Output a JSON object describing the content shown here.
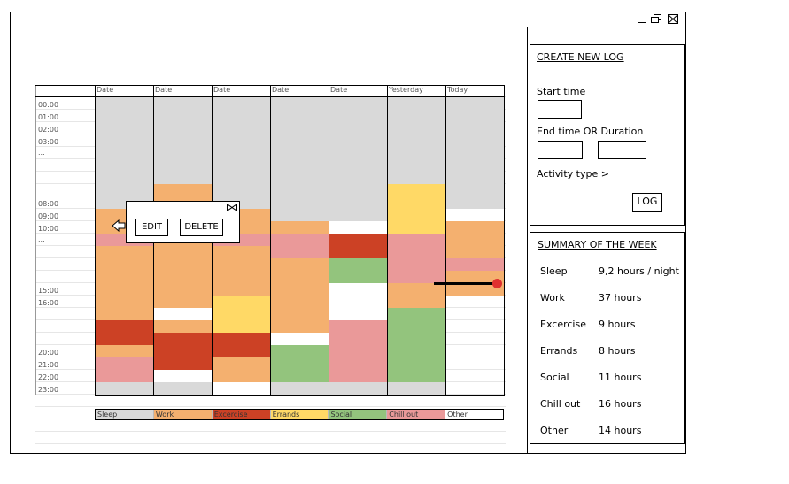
{
  "calendar": {
    "columns": [
      "Date",
      "Date",
      "Date",
      "Date",
      "Date",
      "Yesterday",
      "Today"
    ],
    "times": [
      "00:00",
      "01:00",
      "02:00",
      "03:00",
      "...",
      "08:00",
      "09:00",
      "10:00",
      "...",
      "15:00",
      "16:00",
      "20:00",
      "21:00",
      "22:00",
      "23:00"
    ]
  },
  "legend": [
    "Sleep",
    "Work",
    "Excercise",
    "Errands",
    "Social",
    "Chill out",
    "Other"
  ],
  "colors": {
    "sleep": "#d9d9d9",
    "work": "#f4b06f",
    "excercise": "#cc4125",
    "errands": "#ffd966",
    "social": "#93c47d",
    "chill_out": "#ea9999",
    "other": "#ffffff",
    "now_marker": "#e03030"
  },
  "popup": {
    "edit": "EDIT",
    "delete": "DELETE"
  },
  "create_log": {
    "title": "CREATE NEW LOG",
    "start_time": "Start time",
    "end_or_duration": "End time OR Duration",
    "activity_type": "Activity type >",
    "log_button": "LOG"
  },
  "summary": {
    "title": "SUMMARY OF THE WEEK",
    "rows": [
      {
        "activity": "Sleep",
        "value": "9,2 hours / night"
      },
      {
        "activity": "Work",
        "value": "37 hours"
      },
      {
        "activity": "Excercise",
        "value": "9 hours"
      },
      {
        "activity": "Errands",
        "value": "8 hours"
      },
      {
        "activity": "Social",
        "value": "11 hours"
      },
      {
        "activity": "Chill out",
        "value": "16 hours"
      },
      {
        "activity": "Other",
        "value": "14 hours"
      }
    ]
  },
  "window_controls": [
    "minimize-icon",
    "restore-icon",
    "close-icon"
  ]
}
